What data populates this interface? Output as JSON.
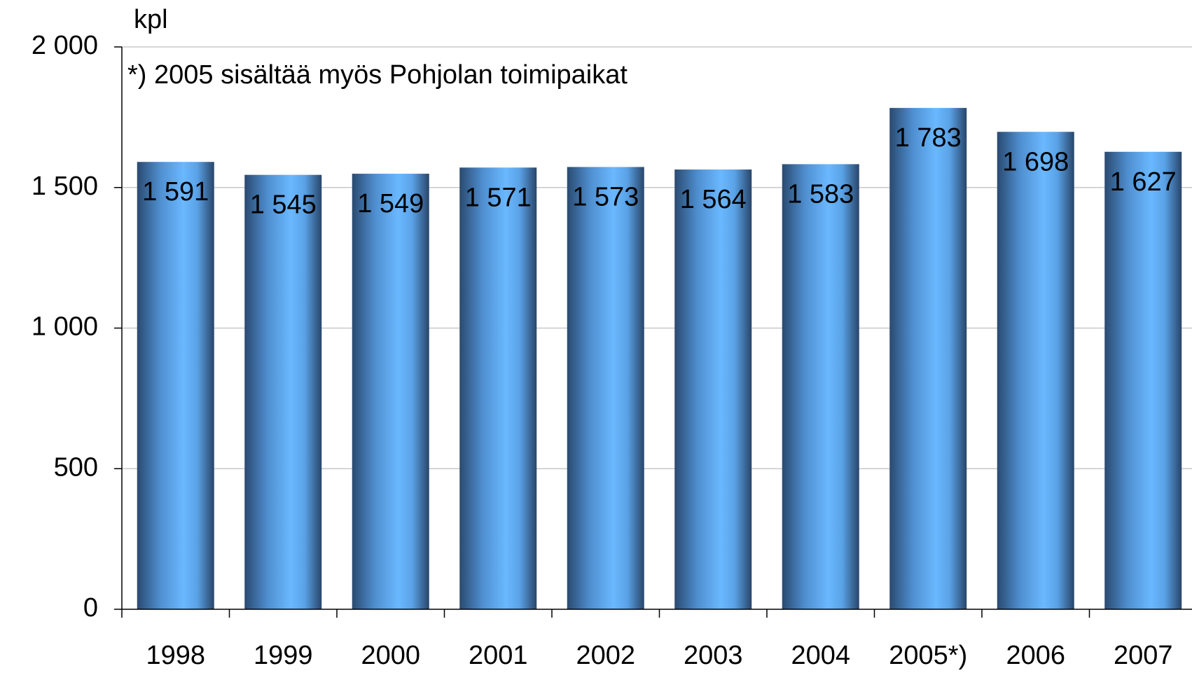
{
  "chart_data": {
    "type": "bar",
    "title": "kpl",
    "annotation": "*) 2005 sisältää myös Pohjolan toimipaikat",
    "categories": [
      "1998",
      "1999",
      "2000",
      "2001",
      "2002",
      "2003",
      "2004",
      "2005*)",
      "2006",
      "2007"
    ],
    "values": [
      1591,
      1545,
      1549,
      1571,
      1573,
      1564,
      1583,
      1783,
      1698,
      1627
    ],
    "value_labels": [
      "1 591",
      "1 545",
      "1 549",
      "1 571",
      "1 573",
      "1 564",
      "1 583",
      "1 783",
      "1 698",
      "1 627"
    ],
    "color": "#66b3ff",
    "ylim": [
      0,
      2000
    ],
    "yticks": [
      0,
      500,
      {
        "value": 1000,
        "label": "1 000"
      },
      {
        "value": 1500,
        "label": "1 500"
      },
      {
        "value": 2000,
        "label": "2 000"
      }
    ],
    "grid": true
  }
}
